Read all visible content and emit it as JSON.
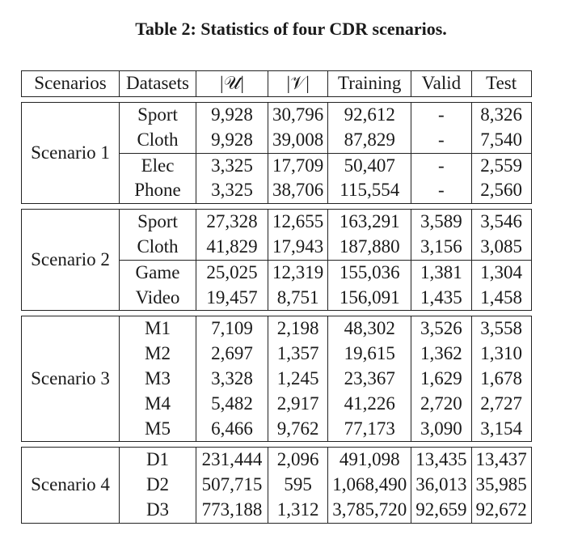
{
  "caption": "Table 2: Statistics of four CDR scenarios.",
  "headers": {
    "scenarios": "Scenarios",
    "datasets": "Datasets",
    "users": "|𝒰|",
    "items": "|𝒱|",
    "training": "Training",
    "valid": "Valid",
    "test": "Test"
  },
  "scenarios": [
    {
      "name": "Scenario 1",
      "rows": [
        {
          "dataset": "Sport",
          "users": "9,928",
          "items": "30,796",
          "training": "92,612",
          "valid": "-",
          "test": "8,326"
        },
        {
          "dataset": "Cloth",
          "users": "9,928",
          "items": "39,008",
          "training": "87,829",
          "valid": "-",
          "test": "7,540"
        },
        {
          "dataset": "Elec",
          "users": "3,325",
          "items": "17,709",
          "training": "50,407",
          "valid": "-",
          "test": "2,559"
        },
        {
          "dataset": "Phone",
          "users": "3,325",
          "items": "38,706",
          "training": "115,554",
          "valid": "-",
          "test": "2,560"
        }
      ]
    },
    {
      "name": "Scenario 2",
      "rows": [
        {
          "dataset": "Sport",
          "users": "27,328",
          "items": "12,655",
          "training": "163,291",
          "valid": "3,589",
          "test": "3,546"
        },
        {
          "dataset": "Cloth",
          "users": "41,829",
          "items": "17,943",
          "training": "187,880",
          "valid": "3,156",
          "test": "3,085"
        },
        {
          "dataset": "Game",
          "users": "25,025",
          "items": "12,319",
          "training": "155,036",
          "valid": "1,381",
          "test": "1,304"
        },
        {
          "dataset": "Video",
          "users": "19,457",
          "items": "8,751",
          "training": "156,091",
          "valid": "1,435",
          "test": "1,458"
        }
      ]
    },
    {
      "name": "Scenario 3",
      "rows": [
        {
          "dataset": "M1",
          "users": "7,109",
          "items": "2,198",
          "training": "48,302",
          "valid": "3,526",
          "test": "3,558"
        },
        {
          "dataset": "M2",
          "users": "2,697",
          "items": "1,357",
          "training": "19,615",
          "valid": "1,362",
          "test": "1,310"
        },
        {
          "dataset": "M3",
          "users": "3,328",
          "items": "1,245",
          "training": "23,367",
          "valid": "1,629",
          "test": "1,678"
        },
        {
          "dataset": "M4",
          "users": "5,482",
          "items": "2,917",
          "training": "41,226",
          "valid": "2,720",
          "test": "2,727"
        },
        {
          "dataset": "M5",
          "users": "6,466",
          "items": "9,762",
          "training": "77,173",
          "valid": "3,090",
          "test": "3,154"
        }
      ]
    },
    {
      "name": "Scenario 4",
      "rows": [
        {
          "dataset": "D1",
          "users": "231,444",
          "items": "2,096",
          "training": "491,098",
          "valid": "13,435",
          "test": "13,437"
        },
        {
          "dataset": "D2",
          "users": "507,715",
          "items": "595",
          "training": "1,068,490",
          "valid": "36,013",
          "test": "35,985"
        },
        {
          "dataset": "D3",
          "users": "773,188",
          "items": "1,312",
          "training": "3,785,720",
          "valid": "92,659",
          "test": "92,672"
        }
      ]
    }
  ]
}
